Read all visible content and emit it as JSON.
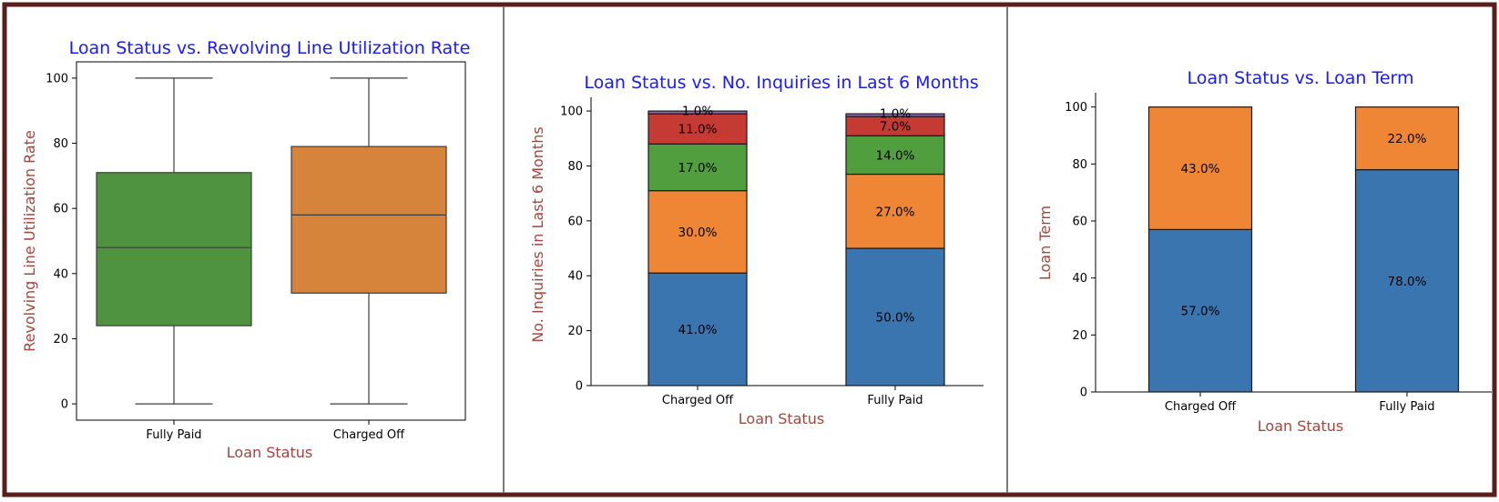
{
  "colors": {
    "title": "#1a1aff",
    "axis_label": "#a9443c",
    "border": "#5a1f1a",
    "divider": "#7a7a7a",
    "green": "#4f9340",
    "orange_box": "#d6833c",
    "blue": "#3b75af",
    "orange": "#ef8636",
    "green_bar": "#519e3e",
    "red": "#c53a32",
    "purple": "#8d69b8",
    "whisker": "#3c3c3c"
  },
  "chart_data": [
    {
      "type": "box",
      "title": "Loan Status vs. Revolving Line Utilization Rate",
      "xlabel": "Loan Status",
      "ylabel": "Revolving Line Utilization Rate",
      "categories": [
        "Fully Paid",
        "Charged Off"
      ],
      "ylim": [
        -5,
        105
      ],
      "yticks": [
        0,
        20,
        40,
        60,
        80,
        100
      ],
      "boxes": [
        {
          "name": "Fully Paid",
          "min": 0,
          "q1": 24,
          "median": 48,
          "q3": 71,
          "max": 100,
          "color": "#4f9340"
        },
        {
          "name": "Charged Off",
          "min": 0,
          "q1": 34,
          "median": 58,
          "q3": 79,
          "max": 100,
          "color": "#d6833c"
        }
      ],
      "grid": false
    },
    {
      "type": "bar",
      "stacked": true,
      "title": "Loan Status vs. No. Inquiries in Last 6 Months",
      "xlabel": "Loan Status",
      "ylabel": "No. Inquiries in Last 6 Months",
      "categories": [
        "Charged Off",
        "Fully Paid"
      ],
      "ylim": [
        0,
        105
      ],
      "yticks": [
        0,
        20,
        40,
        60,
        80,
        100
      ],
      "series": [
        {
          "values": [
            41,
            50
          ],
          "labels": [
            "41.0%",
            "50.0%"
          ],
          "color": "#3b75af"
        },
        {
          "values": [
            30,
            27
          ],
          "labels": [
            "30.0%",
            "27.0%"
          ],
          "color": "#ef8636"
        },
        {
          "values": [
            17,
            14
          ],
          "labels": [
            "17.0%",
            "14.0%"
          ],
          "color": "#519e3e"
        },
        {
          "values": [
            11,
            7
          ],
          "labels": [
            "11.0%",
            "7.0%"
          ],
          "color": "#c53a32"
        },
        {
          "values": [
            1,
            1
          ],
          "labels": [
            "1.0%",
            "1.0%"
          ],
          "color": "#8d69b8"
        }
      ],
      "grid": false
    },
    {
      "type": "bar",
      "stacked": true,
      "title": "Loan Status vs. Loan Term",
      "xlabel": "Loan Status",
      "ylabel": "Loan Term",
      "categories": [
        "Charged Off",
        "Fully Paid"
      ],
      "ylim": [
        0,
        105
      ],
      "yticks": [
        0,
        20,
        40,
        60,
        80,
        100
      ],
      "series": [
        {
          "values": [
            57,
            78
          ],
          "labels": [
            "57.0%",
            "78.0%"
          ],
          "color": "#3b75af"
        },
        {
          "values": [
            43,
            22
          ],
          "labels": [
            "43.0%",
            "22.0%"
          ],
          "color": "#ef8636"
        }
      ],
      "grid": false
    }
  ]
}
